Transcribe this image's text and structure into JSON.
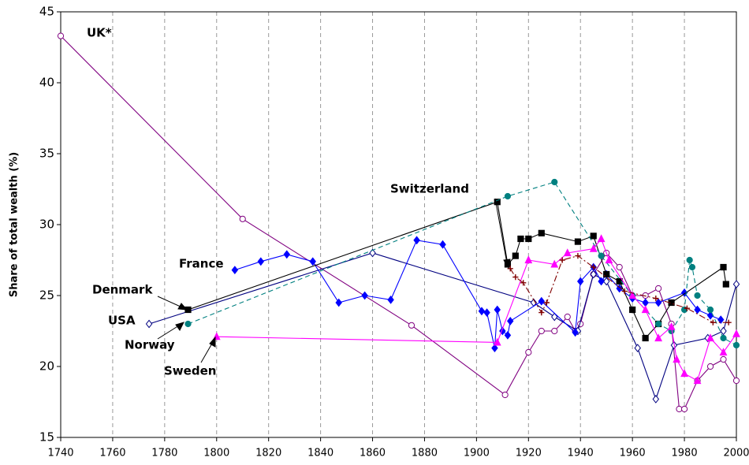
{
  "chart_data": {
    "type": "line",
    "y_label": "Share of total wealth (%)",
    "xlim": [
      1740,
      2000
    ],
    "xticks": [
      1740,
      1760,
      1780,
      1800,
      1820,
      1840,
      1860,
      1880,
      1900,
      1920,
      1940,
      1960,
      1980,
      2000
    ],
    "ylim": [
      15,
      45
    ],
    "yticks": [
      15,
      20,
      25,
      30,
      35,
      40,
      45
    ],
    "grid": true,
    "annotations": [
      "UK*",
      "Switzerland",
      "France",
      "Denmark",
      "USA",
      "Norway",
      "Sweden"
    ],
    "series": [
      {
        "name": "UK*",
        "color": "#800080",
        "marker": "circle-open",
        "dash": "solid",
        "x": [
          1740,
          1810,
          1875,
          1911,
          1920,
          1925,
          1930,
          1935,
          1938,
          1940,
          1945,
          1950,
          1955,
          1960,
          1965,
          1970,
          1975,
          1978,
          1980,
          1985,
          1990,
          1995,
          2000
        ],
        "values": [
          43.3,
          30.4,
          22.9,
          18,
          21,
          22.5,
          22.5,
          23.5,
          22.5,
          23,
          26.5,
          28,
          27,
          25,
          25,
          25.5,
          23,
          17,
          17,
          19,
          20,
          20.5,
          19
        ]
      },
      {
        "name": "USA",
        "color": "#000080",
        "marker": "diamond-open",
        "dash": "solid",
        "x": [
          1774,
          1860,
          1922,
          1930,
          1939,
          1945,
          1950,
          1962,
          1969,
          1976,
          1989,
          1995,
          2000
        ],
        "values": [
          23,
          28,
          24.5,
          23.5,
          22.5,
          26.5,
          26,
          21.3,
          17.7,
          21.5,
          22,
          22.5,
          25.8
        ]
      },
      {
        "name": "France",
        "color": "#0000ff",
        "marker": "diamond",
        "dash": "solid",
        "x": [
          1807,
          1817,
          1827,
          1837,
          1847,
          1857,
          1867,
          1877,
          1887,
          1902,
          1904,
          1907,
          1908,
          1910,
          1912,
          1913,
          1925,
          1938,
          1940,
          1945,
          1948,
          1950,
          1955,
          1960,
          1965,
          1970,
          1980,
          1985,
          1990,
          1994
        ],
        "values": [
          26.8,
          27.4,
          27.9,
          27.4,
          24.5,
          25,
          24.7,
          28.9,
          28.6,
          23.9,
          23.8,
          21.3,
          24,
          22.5,
          22.2,
          23.2,
          24.6,
          22.4,
          26,
          27,
          26,
          26.5,
          25.5,
          24.8,
          24.5,
          24.5,
          25.2,
          24,
          23.6,
          23.3
        ]
      },
      {
        "name": "Denmark",
        "color": "#000000",
        "marker": "square",
        "dash": "solid",
        "x": [
          1789,
          1908,
          1912,
          1915,
          1917,
          1920,
          1925,
          1939,
          1945,
          1950,
          1955,
          1960,
          1965,
          1970,
          1975,
          1995,
          1996
        ],
        "values": [
          24,
          31.6,
          27.2,
          27.8,
          29,
          29,
          29.4,
          28.8,
          29.2,
          26.5,
          26,
          24,
          22,
          23,
          24.5,
          27,
          25.8
        ]
      },
      {
        "name": "Norway",
        "color": "#008080",
        "marker": "circle",
        "dash": "dashed",
        "x": [
          1789,
          1912,
          1930,
          1948,
          1960,
          1970,
          1975,
          1980,
          1982,
          1983,
          1985,
          1990,
          1995,
          2000
        ],
        "values": [
          23,
          32,
          33,
          27.8,
          25,
          23,
          22.5,
          24,
          27.5,
          27,
          25,
          24,
          22,
          21.5
        ]
      },
      {
        "name": "Sweden",
        "color": "#ff00ff",
        "marker": "triangle",
        "dash": "solid",
        "x": [
          1800,
          1908,
          1920,
          1930,
          1935,
          1945,
          1948,
          1951,
          1960,
          1965,
          1970,
          1975,
          1977,
          1980,
          1985,
          1990,
          1995,
          2000
        ],
        "values": [
          22.1,
          21.7,
          27.5,
          27.2,
          28,
          28.3,
          29,
          27.5,
          25,
          24,
          22,
          22.8,
          20.5,
          19.5,
          19,
          22,
          21,
          22.3
        ]
      },
      {
        "name": "Switzerland",
        "color": "#800000",
        "marker": "plus",
        "dash": "dashdot",
        "x": [
          1913,
          1915,
          1918,
          1925,
          1927,
          1933,
          1939,
          1945,
          1957,
          1969,
          1981,
          1991,
          1997
        ],
        "values": [
          26.9,
          26.3,
          25.9,
          23.8,
          24.5,
          27.5,
          27.8,
          27,
          25.3,
          24.8,
          24.1,
          23.1,
          23.1
        ]
      }
    ]
  }
}
